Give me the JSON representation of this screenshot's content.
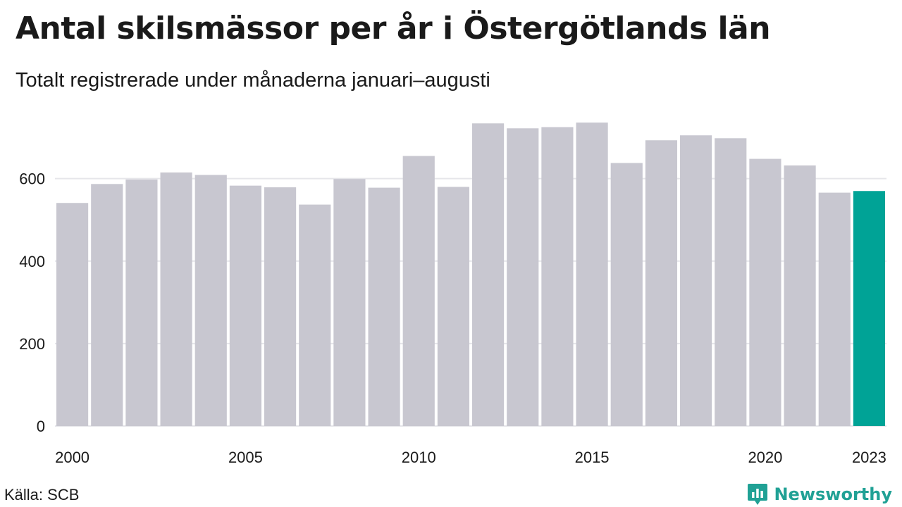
{
  "title": "Antal skilsmässor per år i Östergötlands län",
  "subtitle": "Totalt registrerade under månaderna januari–augusti",
  "source": "Källa: SCB",
  "brand": "Newsworthy",
  "brand_icon": "newsworthy-logo-icon",
  "colors": {
    "bar": "#c8c7d0",
    "highlight": "#00a396",
    "grid": "#e6e6ea",
    "brand": "#20a195"
  },
  "chart_data": {
    "type": "bar",
    "x": [
      2000,
      2001,
      2002,
      2003,
      2004,
      2005,
      2006,
      2007,
      2008,
      2009,
      2010,
      2011,
      2012,
      2013,
      2014,
      2015,
      2016,
      2017,
      2018,
      2019,
      2020,
      2021,
      2022,
      2023
    ],
    "values": [
      541,
      587,
      598,
      615,
      609,
      583,
      579,
      537,
      599,
      578,
      655,
      580,
      734,
      722,
      725,
      736,
      638,
      693,
      705,
      698,
      648,
      632,
      566,
      570
    ],
    "highlight": 2023,
    "x_tick_labels": [
      "2000",
      "2005",
      "2010",
      "2015",
      "2020",
      "2023"
    ],
    "y_ticks": [
      0,
      200,
      400,
      600
    ],
    "ylim": [
      0,
      760
    ],
    "grid": "horizontal",
    "xlabel": "",
    "ylabel": ""
  }
}
